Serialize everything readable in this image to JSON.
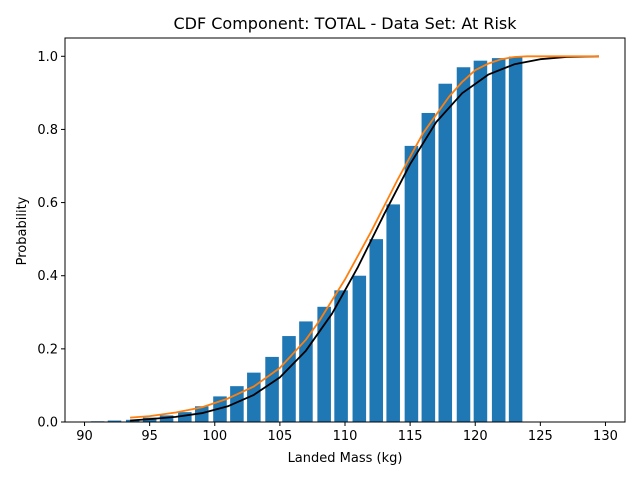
{
  "chart_data": {
    "type": "bar",
    "title": "CDF Component: TOTAL - Data Set: At Risk",
    "xlabel": "Landed Mass (kg)",
    "ylabel": "Probability",
    "xlim": [
      88.5,
      131.5
    ],
    "ylim": [
      0,
      1.05
    ],
    "xticks": [
      90,
      95,
      100,
      105,
      110,
      115,
      120,
      125,
      130
    ],
    "yticks": [
      0.0,
      0.2,
      0.4,
      0.6,
      0.8,
      1.0
    ],
    "grid": false,
    "legend": "none",
    "bars": {
      "color": "#1f77b4",
      "x": [
        91.0,
        92.3,
        93.7,
        95.0,
        96.3,
        97.7,
        99.0,
        100.4,
        101.7,
        103.0,
        104.4,
        105.7,
        107.0,
        108.4,
        109.7,
        111.1,
        112.4,
        113.7,
        115.1,
        116.4,
        117.7,
        119.1,
        120.4,
        121.8,
        123.1
      ],
      "values": [
        0.002,
        0.004,
        0.006,
        0.012,
        0.018,
        0.027,
        0.043,
        0.07,
        0.098,
        0.135,
        0.178,
        0.235,
        0.275,
        0.315,
        0.36,
        0.4,
        0.5,
        0.595,
        0.755,
        0.845,
        0.925,
        0.97,
        0.988,
        0.995,
        0.999
      ]
    },
    "series": [
      {
        "color": "#000000",
        "x": [
          93.5,
          95,
          97,
          99,
          101,
          103,
          105,
          107,
          109,
          111,
          113,
          115,
          117,
          119,
          121,
          123,
          125,
          127,
          129.5
        ],
        "values": [
          0.004,
          0.008,
          0.014,
          0.024,
          0.043,
          0.074,
          0.122,
          0.195,
          0.296,
          0.424,
          0.568,
          0.705,
          0.82,
          0.899,
          0.95,
          0.978,
          0.992,
          0.998,
          1.0
        ]
      },
      {
        "color": "#ff7f0e",
        "x": [
          93.5,
          95,
          97,
          99,
          101,
          103,
          105,
          107,
          108,
          110,
          112,
          114,
          116,
          118,
          119,
          120,
          121,
          122,
          123,
          124,
          126,
          129.5
        ],
        "values": [
          0.012,
          0.016,
          0.026,
          0.04,
          0.064,
          0.097,
          0.148,
          0.225,
          0.275,
          0.39,
          0.52,
          0.66,
          0.79,
          0.89,
          0.93,
          0.962,
          0.98,
          0.992,
          0.998,
          1.0,
          1.0,
          1.0
        ]
      }
    ]
  }
}
